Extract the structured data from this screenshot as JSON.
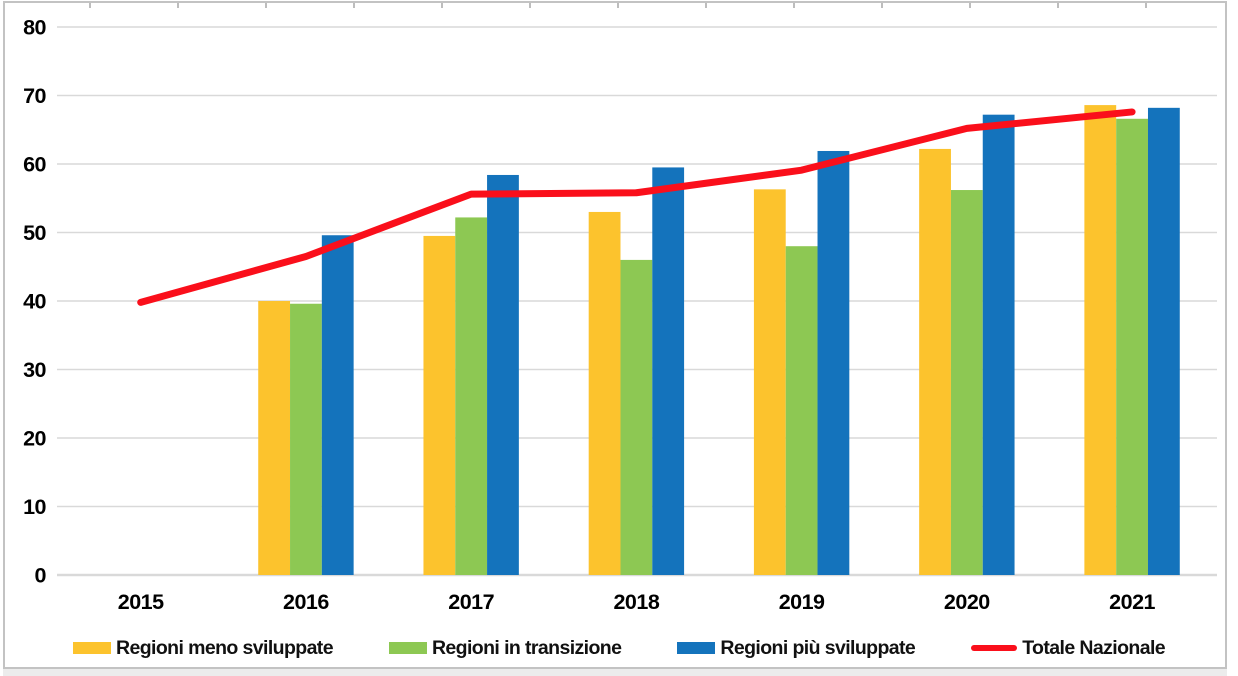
{
  "chart_data": {
    "type": "combo-bar-line",
    "title": "",
    "xlabel": "",
    "ylabel": "",
    "categories": [
      "2015",
      "2016",
      "2017",
      "2018",
      "2019",
      "2020",
      "2021"
    ],
    "series": [
      {
        "name": "Regioni meno sviluppate",
        "type": "bar",
        "color": "#FCC32D",
        "values": [
          null,
          40.0,
          49.5,
          53.0,
          56.3,
          62.2,
          68.6
        ]
      },
      {
        "name": "Regioni in transizione",
        "type": "bar",
        "color": "#8DC853",
        "values": [
          null,
          39.6,
          52.2,
          46.0,
          48.0,
          56.2,
          66.6
        ]
      },
      {
        "name": "Regioni più sviluppate",
        "type": "bar",
        "color": "#1473BC",
        "values": [
          null,
          49.6,
          58.4,
          59.5,
          61.9,
          67.2,
          68.2
        ]
      },
      {
        "name": "Totale Nazionale",
        "type": "line",
        "color": "#FA0F1B",
        "values": [
          39.8,
          46.5,
          55.6,
          55.8,
          59.1,
          65.2,
          67.6
        ]
      }
    ],
    "ylim": [
      0,
      80
    ],
    "ytick_step": 10,
    "ytick_labels": [
      "0",
      "10",
      "20",
      "30",
      "40",
      "50",
      "60",
      "70",
      "80"
    ],
    "grid": true,
    "gridline_color": "#D9D9D9",
    "legend_position": "bottom"
  }
}
